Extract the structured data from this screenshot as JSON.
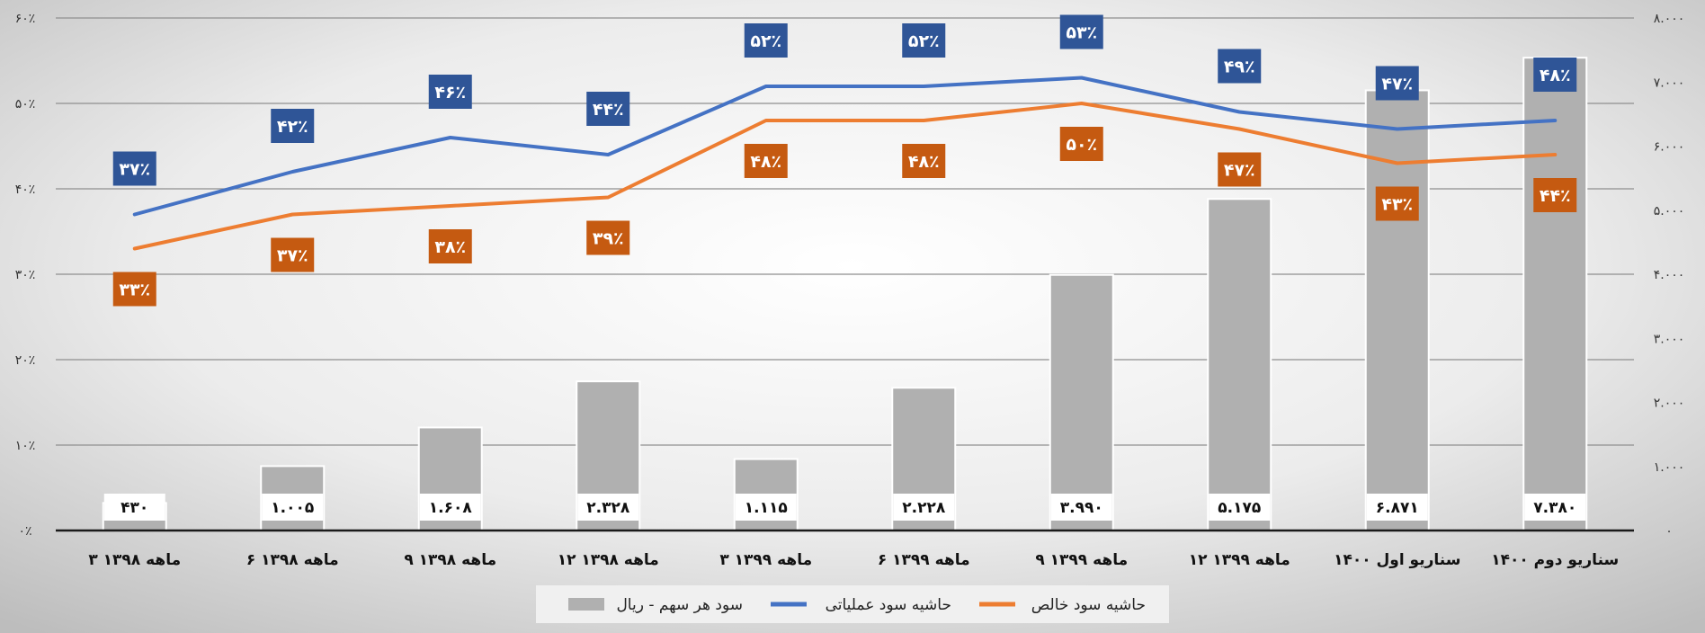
{
  "chart_data": {
    "type": "bar-line",
    "title": "",
    "categories": [
      "۳ ماهه ۱۳۹۸",
      "۶ ماهه ۱۳۹۸",
      "۹ ماهه ۱۳۹۸",
      "۱۲ ماهه ۱۳۹۸",
      "۳ ماهه ۱۳۹۹",
      "۶ ماهه ۱۳۹۹",
      "۹ ماهه ۱۳۹۹",
      "۱۲ ماهه ۱۳۹۹",
      "سناریو اول ۱۴۰۰",
      "سناریو دوم ۱۴۰۰"
    ],
    "series": [
      {
        "name": "سود هر سهم - ریال",
        "type": "bar",
        "axis": "right",
        "color": "#b0b0b0",
        "values": [
          430,
          1005,
          1608,
          2328,
          1115,
          2228,
          3990,
          5175,
          6871,
          7380
        ],
        "labels": [
          "۴۳۰",
          "۱.۰۰۵",
          "۱.۶۰۸",
          "۲.۳۲۸",
          "۱.۱۱۵",
          "۲.۲۲۸",
          "۳.۹۹۰",
          "۵.۱۷۵",
          "۶.۸۷۱",
          "۷.۳۸۰"
        ]
      },
      {
        "name": "حاشیه سود عملیاتی",
        "type": "line",
        "axis": "left",
        "color": "#4472c4",
        "label_color": "#2f5597",
        "values": [
          37,
          42,
          46,
          44,
          52,
          52,
          53,
          49,
          47,
          48
        ],
        "labels": [
          "۳۷٪",
          "۴۲٪",
          "۴۶٪",
          "۴۴٪",
          "۵۲٪",
          "۵۲٪",
          "۵۳٪",
          "۴۹٪",
          "۴۷٪",
          "۴۸٪"
        ]
      },
      {
        "name": "حاشیه سود خالص",
        "type": "line",
        "axis": "left",
        "color": "#ed7d31",
        "label_color": "#c55a11",
        "values": [
          33,
          37,
          38,
          39,
          48,
          48,
          50,
          47,
          43,
          44
        ],
        "labels": [
          "۳۳٪",
          "۳۷٪",
          "۳۸٪",
          "۳۹٪",
          "۴۸٪",
          "۴۸٪",
          "۵۰٪",
          "۴۷٪",
          "۴۳٪",
          "۴۴٪"
        ]
      }
    ],
    "y_left": {
      "min": 0,
      "max": 60,
      "step": 10,
      "tick_labels": [
        "۰٪",
        "۱۰٪",
        "۲۰٪",
        "۳۰٪",
        "۴۰٪",
        "۵۰٪",
        "۶۰٪"
      ]
    },
    "y_right": {
      "min": 0,
      "max": 8000,
      "step": 1000,
      "tick_labels": [
        "۰",
        "۱.۰۰۰",
        "۲.۰۰۰",
        "۳.۰۰۰",
        "۴.۰۰۰",
        "۵.۰۰۰",
        "۶.۰۰۰",
        "۷.۰۰۰",
        "۸.۰۰۰"
      ]
    },
    "grid": true,
    "legend_position": "bottom"
  }
}
